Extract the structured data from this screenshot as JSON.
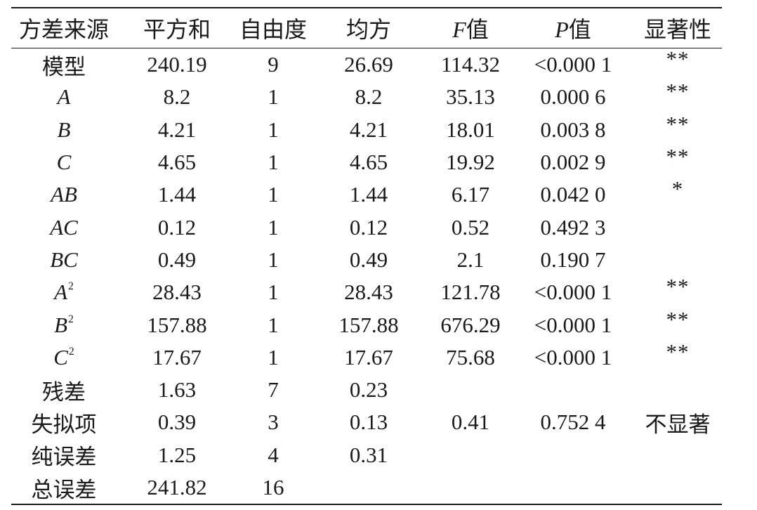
{
  "table": {
    "headers": {
      "source": "方差来源",
      "ss": "平方和",
      "df": "自由度",
      "ms": "均方",
      "f_symbol": "F",
      "f_suffix": "值",
      "p_symbol": "P",
      "p_suffix": "值",
      "sig": "显著性"
    },
    "rows": [
      {
        "source": "模型",
        "italic": false,
        "sup": "",
        "ss": "240.19",
        "df": "9",
        "ms": "26.69",
        "f": "114.32",
        "p": "<0.000 1",
        "sig": "**"
      },
      {
        "source": "A",
        "italic": true,
        "sup": "",
        "ss": "8.2",
        "df": "1",
        "ms": "8.2",
        "f": "35.13",
        "p": "0.000 6",
        "sig": "**"
      },
      {
        "source": "B",
        "italic": true,
        "sup": "",
        "ss": "4.21",
        "df": "1",
        "ms": "4.21",
        "f": "18.01",
        "p": "0.003 8",
        "sig": "**"
      },
      {
        "source": "C",
        "italic": true,
        "sup": "",
        "ss": "4.65",
        "df": "1",
        "ms": "4.65",
        "f": "19.92",
        "p": "0.002 9",
        "sig": "**"
      },
      {
        "source": "AB",
        "italic": true,
        "sup": "",
        "ss": "1.44",
        "df": "1",
        "ms": "1.44",
        "f": "6.17",
        "p": "0.042 0",
        "sig": "*"
      },
      {
        "source": "AC",
        "italic": true,
        "sup": "",
        "ss": "0.12",
        "df": "1",
        "ms": "0.12",
        "f": "0.52",
        "p": "0.492 3",
        "sig": ""
      },
      {
        "source": "BC",
        "italic": true,
        "sup": "",
        "ss": "0.49",
        "df": "1",
        "ms": "0.49",
        "f": "2.1",
        "p": "0.190 7",
        "sig": ""
      },
      {
        "source": "A",
        "italic": true,
        "sup": "2",
        "ss": "28.43",
        "df": "1",
        "ms": "28.43",
        "f": "121.78",
        "p": "<0.000 1",
        "sig": "**"
      },
      {
        "source": "B",
        "italic": true,
        "sup": "2",
        "ss": "157.88",
        "df": "1",
        "ms": "157.88",
        "f": "676.29",
        "p": "<0.000 1",
        "sig": "**"
      },
      {
        "source": "C",
        "italic": true,
        "sup": "2",
        "ss": "17.67",
        "df": "1",
        "ms": "17.67",
        "f": "75.68",
        "p": "<0.000 1",
        "sig": "**"
      },
      {
        "source": "残差",
        "italic": false,
        "sup": "",
        "ss": "1.63",
        "df": "7",
        "ms": "0.23",
        "f": "",
        "p": "",
        "sig": ""
      },
      {
        "source": "失拟项",
        "italic": false,
        "sup": "",
        "ss": "0.39",
        "df": "3",
        "ms": "0.13",
        "f": "0.41",
        "p": "0.752 4",
        "sig": "不显著"
      },
      {
        "source": "纯误差",
        "italic": false,
        "sup": "",
        "ss": "1.25",
        "df": "4",
        "ms": "0.31",
        "f": "",
        "p": "",
        "sig": ""
      },
      {
        "source": "总误差",
        "italic": false,
        "sup": "",
        "ss": "241.82",
        "df": "16",
        "ms": "",
        "f": "",
        "p": "",
        "sig": ""
      }
    ]
  }
}
